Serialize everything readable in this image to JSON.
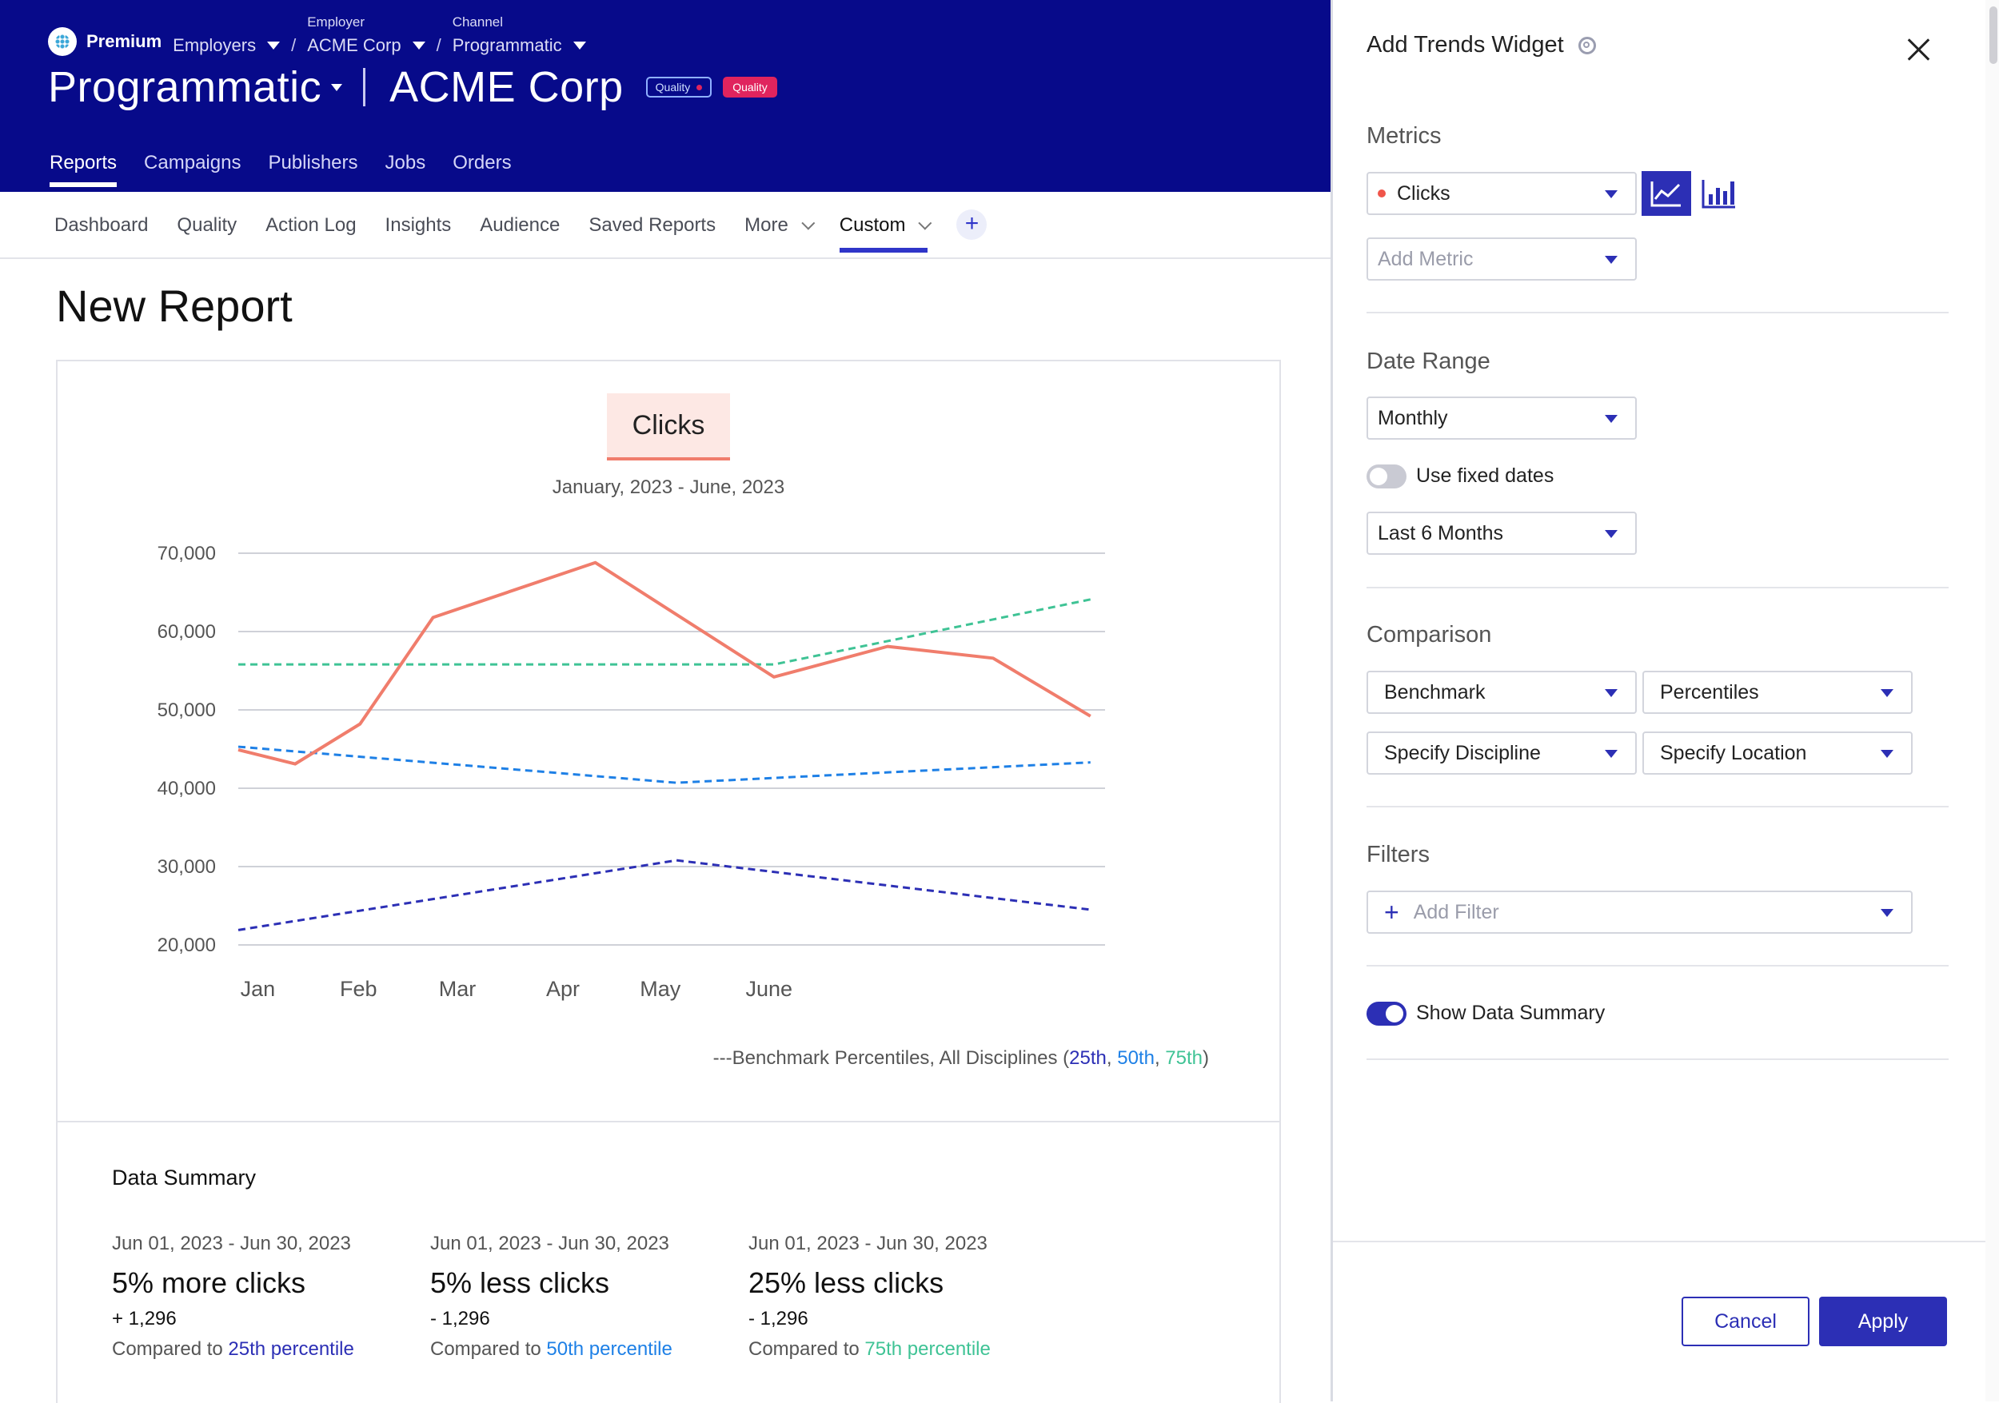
{
  "brand": {
    "label": "Premium",
    "icon": "brand-logo-icon"
  },
  "breadcrumbs": [
    {
      "caption": "",
      "value": "Employers"
    },
    {
      "caption": "Employer",
      "value": "ACME Corp"
    },
    {
      "caption": "Channel",
      "value": "Programmatic"
    }
  ],
  "header": {
    "channel": "Programmatic",
    "company": "ACME Corp",
    "badge_outline": "Quality",
    "badge_filled": "Quality"
  },
  "main_nav": [
    "Reports",
    "Campaigns",
    "Publishers",
    "Jobs",
    "Orders"
  ],
  "sub_nav": [
    "Dashboard",
    "Quality",
    "Action Log",
    "Insights",
    "Audience",
    "Saved Reports",
    "More",
    "Custom"
  ],
  "page": {
    "title": "New Report"
  },
  "chart": {
    "pill": "Clicks",
    "subtitle": "January, 2023 - June, 2023",
    "legend": {
      "prefix": "Benchmark Percentiles, All Disciplines (",
      "p25": "25th",
      "sep": ", ",
      "p50": "50th",
      "p75": "75th",
      "suffix": ")"
    }
  },
  "chart_data": {
    "type": "line",
    "title": "Clicks",
    "subtitle": "January, 2023 - June, 2023",
    "categories": [
      "Jan",
      "Feb",
      "Mar",
      "Apr",
      "May",
      "June"
    ],
    "ylim": [
      18000,
      72000
    ],
    "yticks": [
      20000,
      30000,
      40000,
      50000,
      60000,
      70000
    ],
    "ytick_labels": [
      "20,000",
      "30,000",
      "40,000",
      "50,000",
      "60,000",
      "70,000"
    ],
    "series": [
      {
        "name": "Clicks",
        "color": "#f07d6c",
        "style": "solid",
        "x": [
          0.0,
          0.35,
          0.75,
          1.2,
          2.2,
          3.3,
          4.0,
          4.65,
          5.25
        ],
        "values": [
          44900,
          43100,
          48200,
          61800,
          68800,
          54200,
          58100,
          56600,
          49200
        ]
      },
      {
        "name": "25th",
        "color": "#2c2fb5",
        "style": "dashed",
        "x": [
          0.0,
          2.7,
          5.25
        ],
        "values": [
          21900,
          30800,
          24500
        ]
      },
      {
        "name": "50th",
        "color": "#1e80e6",
        "style": "dashed",
        "x": [
          0.0,
          2.7,
          5.25
        ],
        "values": [
          45300,
          40700,
          43300
        ]
      },
      {
        "name": "75th",
        "color": "#3fc395",
        "style": "dashed",
        "x": [
          0.0,
          3.3,
          5.25
        ],
        "values": [
          55800,
          55800,
          64100
        ]
      }
    ]
  },
  "summary": {
    "title": "Data Summary",
    "items": [
      {
        "dates": "Jun 01, 2023 - Jun 30, 2023",
        "headline": "5% more clicks",
        "delta": "+ 1,296",
        "compared": "Compared to ",
        "link": "25th percentile"
      },
      {
        "dates": "Jun 01, 2023 - Jun 30, 2023",
        "headline": "5% less clicks",
        "delta": "- 1,296",
        "compared": "Compared to ",
        "link": "50th percentile"
      },
      {
        "dates": "Jun 01, 2023 - Jun 30, 2023",
        "headline": "25% less clicks",
        "delta": "- 1,296",
        "compared": "Compared to ",
        "link": "75th percentile"
      }
    ]
  },
  "panel": {
    "title": "Add Trends Widget",
    "metrics_label": "Metrics",
    "metric_value": "Clicks",
    "add_metric_placeholder": "Add Metric",
    "date_range_label": "Date Range",
    "granularity": "Monthly",
    "fixed_dates_label": "Use fixed dates",
    "fixed_dates_on": false,
    "relative_range": "Last 6 Months",
    "comparison_label": "Comparison",
    "comparison_type": "Benchmark",
    "comparison_mode": "Percentiles",
    "discipline": "Specify Discipline",
    "location": "Specify Location",
    "filters_label": "Filters",
    "add_filter_placeholder": "Add Filter",
    "show_summary_label": "Show Data Summary",
    "show_summary_on": true,
    "cancel": "Cancel",
    "apply": "Apply"
  },
  "colors": {
    "header_bg": "#070a8a",
    "accent": "#2c2fb5",
    "clicks": "#f07d6c",
    "p25": "#2c2fb5",
    "p50": "#1e80e6",
    "p75": "#3fc395",
    "badge": "#e0245e"
  }
}
